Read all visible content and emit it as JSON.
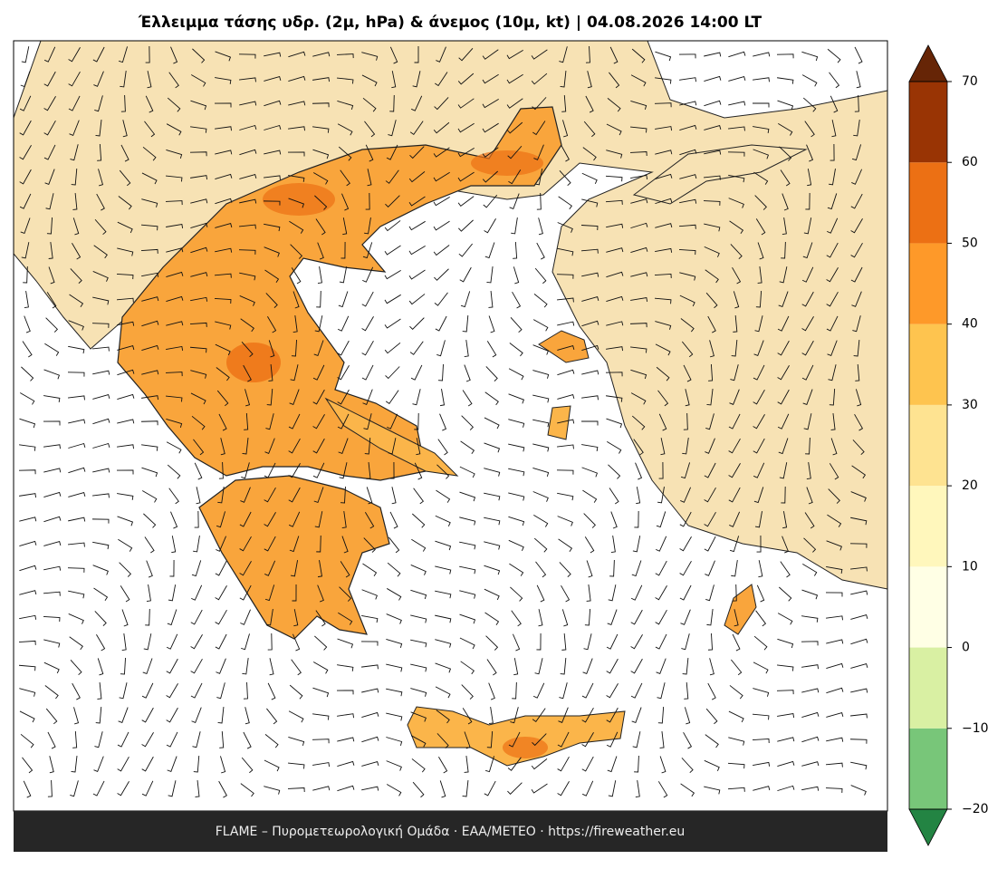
{
  "title": "Έλλειμμα τάσης υδρ. (2μ, hPa) & άνεμος (10μ, kt)  |  04.08.2026 14:00 LT",
  "footer": "FLAME – Πυρομετεωρολογική Ομάδα · ΕΑΑ/METEO · https://fireweather.eu",
  "colorbar": {
    "ticks": [
      {
        "value": -20,
        "label": "−20"
      },
      {
        "value": -10,
        "label": "−10"
      },
      0,
      10,
      20,
      30,
      40,
      50,
      60,
      70
    ],
    "colors": [
      "#78c679",
      "#d9f0a3",
      "#ffffe5",
      "#fff7bc",
      "#fee391",
      "#fec44f",
      "#fe9929",
      "#ec7014",
      "#993404"
    ],
    "under": "#238443",
    "over": "#662506"
  }
}
